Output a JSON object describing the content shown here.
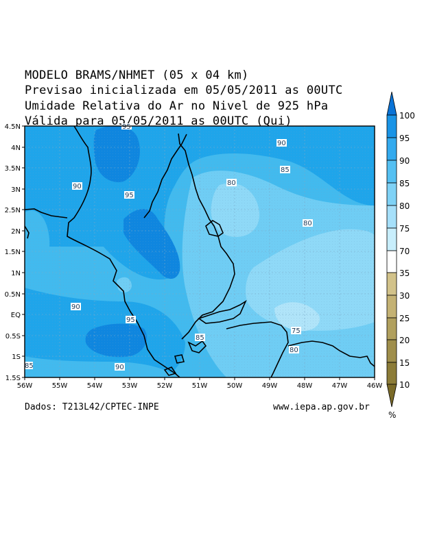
{
  "title": {
    "line1": "MODELO BRAMS/NHMET (05 x 04 km)",
    "line2": "Previsao inicializada em 05/05/2011 as 00UTC",
    "line3": "Umidade Relativa do Ar no Nivel de 925 hPa",
    "line4": "Válida para 05/05/2011 as 00UTC (Qui)"
  },
  "footer": {
    "source": "Dados: T213L42/CPTEC-INPE",
    "website": "www.iepa.ap.gov.br"
  },
  "map": {
    "lon_labels": [
      "56W",
      "55W",
      "54W",
      "53W",
      "52W",
      "51W",
      "50W",
      "49W",
      "48W",
      "47W",
      "46W"
    ],
    "lat_labels": [
      "4.5N",
      "4N",
      "3.5N",
      "3N",
      "2.5N",
      "2N",
      "1.5N",
      "1N",
      "0.5N",
      "EQ",
      "0.5S",
      "1S",
      "1.5S"
    ],
    "contour_labels": [
      "95",
      "90",
      "85",
      "80",
      "95",
      "90",
      "80",
      "95",
      "90",
      "75",
      "80",
      "85",
      "90",
      "85"
    ],
    "fill_colors": {
      "c75_80": "#8fd9f7",
      "c80_85": "#6fcdf4",
      "c85_90": "#42baee",
      "c90_95": "#1fa5ea",
      "c95_100": "#0f86df"
    }
  },
  "colorbar": {
    "labels": [
      "100",
      "95",
      "90",
      "85",
      "80",
      "75",
      "70",
      "35",
      "30",
      "25",
      "20",
      "15",
      "10"
    ],
    "unit": "%",
    "colors": [
      "#0a73d6",
      "#1a94e6",
      "#33aaee",
      "#55c0f2",
      "#7fd2f6",
      "#b3e6fb",
      "#ffffff",
      "#d2c28a",
      "#c4b274",
      "#b1a05e",
      "#9f8e4b",
      "#8c7c38",
      "#7a6a28"
    ]
  }
}
